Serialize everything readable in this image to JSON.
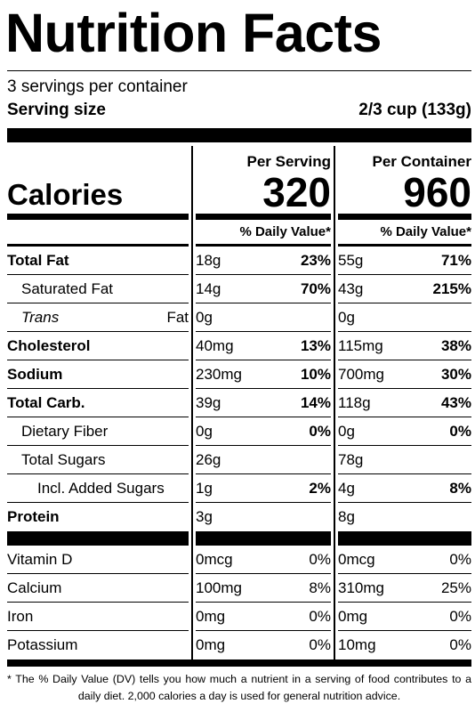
{
  "title": "Nutrition Facts",
  "servings": "3 servings per container",
  "serving_size_label": "Serving size",
  "serving_size": "2/3 cup (133g)",
  "columns": [
    "Per Serving",
    "Per Container"
  ],
  "calories_label": "Calories",
  "calories": [
    320,
    960
  ],
  "dv_header": "% Daily Value*",
  "nutrients": [
    {
      "name": "Total Fat",
      "serving": "18g",
      "serving_dv": "23%",
      "container": "55g",
      "container_dv": "71%"
    },
    {
      "name": "Saturated Fat",
      "serving": "14g",
      "serving_dv": "70%",
      "container": "43g",
      "container_dv": "215%"
    },
    {
      "name": "Trans Fat",
      "serving": "0g",
      "container": "0g"
    },
    {
      "name": "Cholesterol",
      "serving": "40mg",
      "serving_dv": "13%",
      "container": "115mg",
      "container_dv": "38%"
    },
    {
      "name": "Sodium",
      "serving": "230mg",
      "serving_dv": "10%",
      "container": "700mg",
      "container_dv": "30%"
    },
    {
      "name": "Total Carb.",
      "serving": "39g",
      "serving_dv": "14%",
      "container": "118g",
      "container_dv": "43%"
    },
    {
      "name": "Dietary Fiber",
      "serving": "0g",
      "serving_dv": "0%",
      "container": "0g",
      "container_dv": "0%"
    },
    {
      "name": "Total Sugars",
      "serving": "26g",
      "container": "78g"
    },
    {
      "name": "Incl. Added Sugars",
      "serving": "1g",
      "serving_dv": "2%",
      "container": "4g",
      "container_dv": "8%"
    },
    {
      "name": "Protein",
      "serving": "3g",
      "container": "8g"
    }
  ],
  "vitamins": [
    {
      "name": "Vitamin D",
      "serving": "0mcg",
      "serving_dv": "0%",
      "container": "0mcg",
      "container_dv": "0%"
    },
    {
      "name": "Calcium",
      "serving": "100mg",
      "serving_dv": "8%",
      "container": "310mg",
      "container_dv": "25%"
    },
    {
      "name": "Iron",
      "serving": "0mg",
      "serving_dv": "0%",
      "container": "0mg",
      "container_dv": "0%"
    },
    {
      "name": "Potassium",
      "serving": "0mg",
      "serving_dv": "0%",
      "container": "10mg",
      "container_dv": "0%"
    }
  ],
  "footnote": "* The % Daily Value (DV) tells you how much a nutrient in a serving of food contributes to a daily diet. 2,000 calories a day is used for general nutrition advice."
}
